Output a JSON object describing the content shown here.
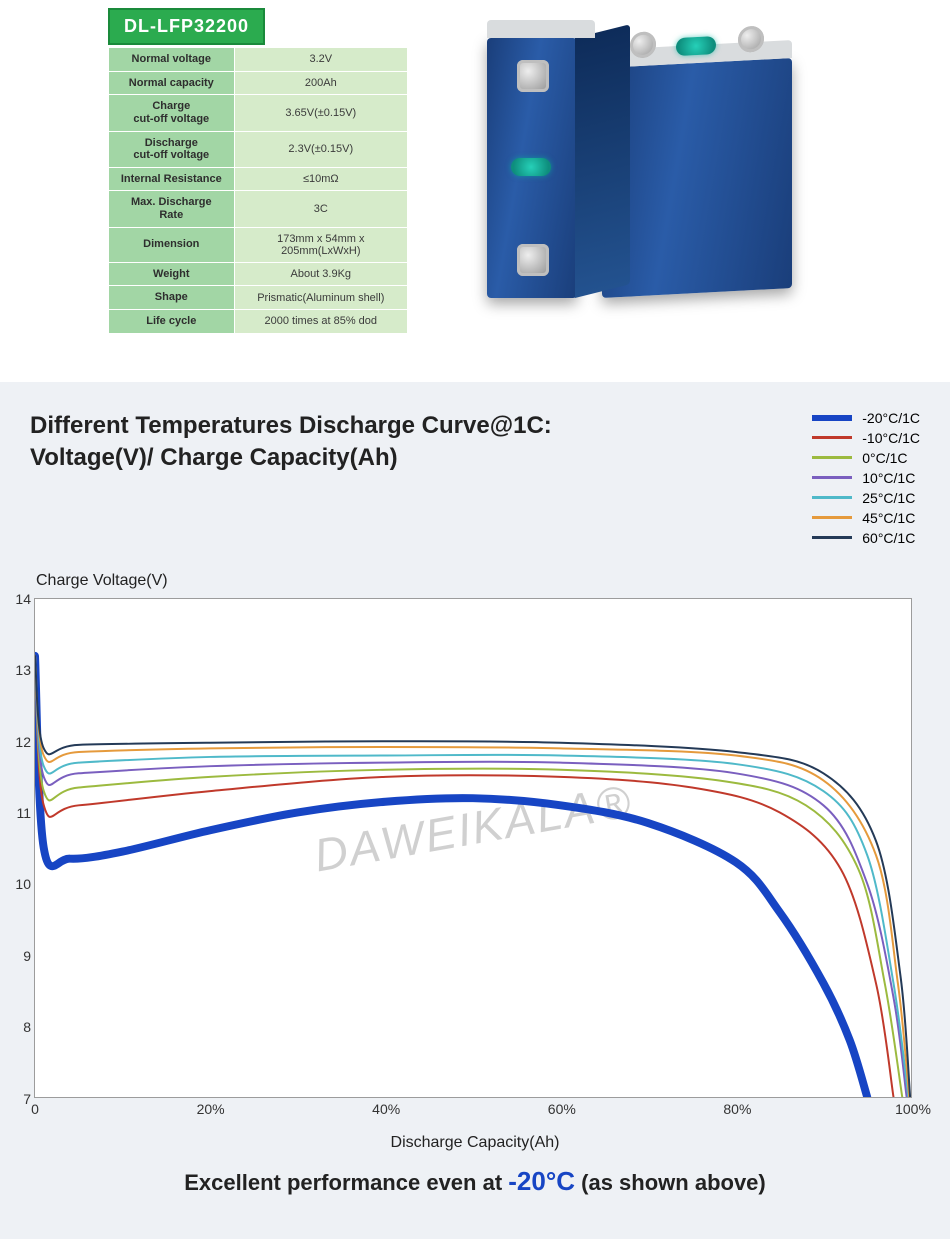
{
  "model_badge": "DL-LFP32200",
  "spec_rows": [
    {
      "k": "Normal voltage",
      "v": "3.2V"
    },
    {
      "k": "Normal capacity",
      "v": "200Ah"
    },
    {
      "k": "Charge\ncut-off voltage",
      "v": "3.65V(±0.15V)"
    },
    {
      "k": "Discharge\ncut-off voltage",
      "v": "2.3V(±0.15V)"
    },
    {
      "k": "Internal Resistance",
      "v": "≤10mΩ"
    },
    {
      "k": "Max. Discharge\nRate",
      "v": "3C"
    },
    {
      "k": "Dimension",
      "v": "173mm x 54mm x 205mm(LxWxH)"
    },
    {
      "k": "Weight",
      "v": "About 3.9Kg"
    },
    {
      "k": "Shape",
      "v": "Prismatic(Aluminum shell)"
    },
    {
      "k": "Life cycle",
      "v": "2000 times at 85% dod"
    }
  ],
  "chart": {
    "title_line1": "Different Temperatures Discharge Curve@1C:",
    "title_line2": "Voltage(V)/ Charge Capacity(Ah)",
    "y_axis_label": "Charge Voltage(V)",
    "x_axis_label": "Discharge Capacity(Ah)",
    "watermark": "DAWEIKALA®",
    "background_color": "#eef1f5",
    "plot_bg": "#ffffff",
    "border_color": "#9c9c9c",
    "ylim": [
      7,
      14
    ],
    "yticks": [
      14,
      13,
      12,
      11,
      10,
      9,
      8,
      7
    ],
    "xlim": [
      0,
      100
    ],
    "xticks": [
      {
        "v": 0,
        "label": "0"
      },
      {
        "v": 20,
        "label": "20%"
      },
      {
        "v": 40,
        "label": "40%"
      },
      {
        "v": 60,
        "label": "60%"
      },
      {
        "v": 80,
        "label": "80%"
      },
      {
        "v": 100,
        "label": "100%"
      }
    ],
    "series": [
      {
        "name": "-20°C/1C",
        "color": "#1745c4",
        "width": 8,
        "points": [
          [
            0,
            13.2
          ],
          [
            1,
            10.5
          ],
          [
            4,
            10.35
          ],
          [
            10,
            10.45
          ],
          [
            20,
            10.75
          ],
          [
            30,
            11.0
          ],
          [
            40,
            11.15
          ],
          [
            50,
            11.2
          ],
          [
            60,
            11.1
          ],
          [
            70,
            10.85
          ],
          [
            80,
            10.3
          ],
          [
            85,
            9.6
          ],
          [
            90,
            8.6
          ],
          [
            93,
            7.8
          ],
          [
            95,
            7.0
          ]
        ]
      },
      {
        "name": "-10°C/1C",
        "color": "#c0392b",
        "width": 2,
        "points": [
          [
            0,
            13.2
          ],
          [
            1,
            11.1
          ],
          [
            5,
            11.1
          ],
          [
            20,
            11.3
          ],
          [
            40,
            11.5
          ],
          [
            60,
            11.5
          ],
          [
            75,
            11.35
          ],
          [
            85,
            11.0
          ],
          [
            92,
            10.2
          ],
          [
            96,
            8.6
          ],
          [
            98,
            7.0
          ]
        ]
      },
      {
        "name": "0°C/1C",
        "color": "#9cba3f",
        "width": 2,
        "points": [
          [
            0,
            13.2
          ],
          [
            1,
            11.3
          ],
          [
            5,
            11.35
          ],
          [
            20,
            11.5
          ],
          [
            40,
            11.6
          ],
          [
            60,
            11.6
          ],
          [
            78,
            11.45
          ],
          [
            88,
            11.1
          ],
          [
            94,
            10.2
          ],
          [
            97,
            8.6
          ],
          [
            99,
            7.0
          ]
        ]
      },
      {
        "name": "10°C/1C",
        "color": "#7a5fbf",
        "width": 2,
        "points": [
          [
            0,
            13.2
          ],
          [
            1,
            11.5
          ],
          [
            5,
            11.55
          ],
          [
            20,
            11.65
          ],
          [
            40,
            11.7
          ],
          [
            60,
            11.7
          ],
          [
            80,
            11.55
          ],
          [
            90,
            11.1
          ],
          [
            95,
            10.0
          ],
          [
            98,
            8.4
          ],
          [
            99.5,
            7.0
          ]
        ]
      },
      {
        "name": "25°C/1C",
        "color": "#4fb9c9",
        "width": 2,
        "points": [
          [
            0,
            13.2
          ],
          [
            1,
            11.65
          ],
          [
            5,
            11.7
          ],
          [
            20,
            11.78
          ],
          [
            40,
            11.8
          ],
          [
            60,
            11.8
          ],
          [
            80,
            11.68
          ],
          [
            90,
            11.3
          ],
          [
            95,
            10.4
          ],
          [
            98,
            8.6
          ],
          [
            99.7,
            7.0
          ]
        ]
      },
      {
        "name": "45°C/1C",
        "color": "#e59a3c",
        "width": 2,
        "points": [
          [
            0,
            13.2
          ],
          [
            1,
            11.8
          ],
          [
            5,
            11.85
          ],
          [
            20,
            11.9
          ],
          [
            40,
            11.92
          ],
          [
            60,
            11.9
          ],
          [
            80,
            11.8
          ],
          [
            90,
            11.45
          ],
          [
            96,
            10.4
          ],
          [
            98.5,
            8.6
          ],
          [
            99.8,
            7.0
          ]
        ]
      },
      {
        "name": "60°C/1C",
        "color": "#243a57",
        "width": 2,
        "points": [
          [
            0,
            13.2
          ],
          [
            1,
            11.9
          ],
          [
            5,
            11.95
          ],
          [
            20,
            11.98
          ],
          [
            40,
            12.0
          ],
          [
            60,
            11.98
          ],
          [
            80,
            11.85
          ],
          [
            90,
            11.55
          ],
          [
            96,
            10.6
          ],
          [
            98.8,
            8.7
          ],
          [
            99.9,
            7.0
          ]
        ]
      }
    ],
    "footer_prefix": "Excellent performance even at ",
    "footer_cold": "-20°C",
    "footer_suffix": " (as shown above)"
  }
}
